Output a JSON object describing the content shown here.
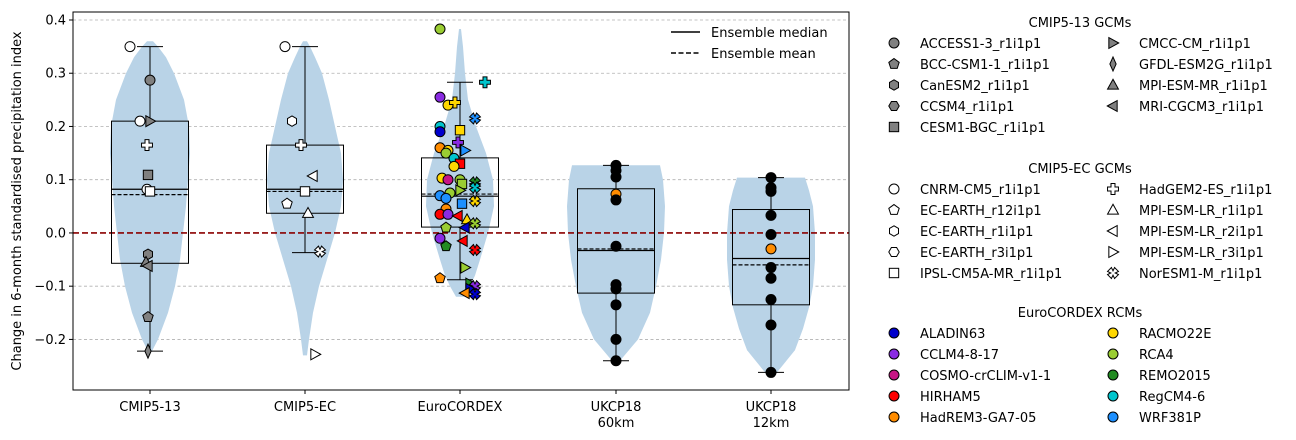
{
  "chart_data": {
    "type": "box",
    "ylabel": "Change in 6-month standardised precipitation index",
    "ylim": [
      -0.295,
      0.415
    ],
    "yticks": [
      -0.2,
      -0.1,
      0.0,
      0.1,
      0.2,
      0.3,
      0.4
    ],
    "ytick_labels": [
      "−0.2",
      "−0.1",
      "0.0",
      "0.1",
      "0.2",
      "0.3",
      "0.4"
    ],
    "grid": "y-dashed",
    "zero_line_color": "#8b0000",
    "violin_color": "#b9d3e7",
    "categories": [
      {
        "label": "CMIP5-13",
        "label2": ""
      },
      {
        "label": "CMIP5-EC",
        "label2": ""
      },
      {
        "label": "EuroCORDEX",
        "label2": ""
      },
      {
        "label": "UKCP18",
        "label2": "60km"
      },
      {
        "label": "UKCP18",
        "label2": "12km"
      }
    ],
    "boxes": [
      {
        "q1": -0.057,
        "q3": 0.21,
        "median": 0.082,
        "mean": 0.072,
        "whislo": -0.222,
        "whishi": 0.35
      },
      {
        "q1": 0.037,
        "q3": 0.165,
        "median": 0.082,
        "mean": 0.078,
        "whislo": -0.037,
        "whishi": 0.35
      },
      {
        "q1": 0.011,
        "q3": 0.141,
        "median": 0.069,
        "mean": 0.073,
        "whislo": -0.088,
        "whishi": 0.283
      },
      {
        "q1": -0.113,
        "q3": 0.083,
        "median": -0.033,
        "mean": -0.03,
        "whislo": -0.24,
        "whishi": 0.127
      },
      {
        "q1": -0.135,
        "q3": 0.044,
        "median": -0.048,
        "mean": -0.06,
        "whislo": -0.262,
        "whishi": 0.104
      }
    ],
    "violins": [
      [
        [
          -0.222,
          2
        ],
        [
          -0.2,
          8
        ],
        [
          -0.15,
          18
        ],
        [
          -0.1,
          25
        ],
        [
          -0.05,
          30
        ],
        [
          0.0,
          33
        ],
        [
          0.05,
          36
        ],
        [
          0.1,
          38
        ],
        [
          0.15,
          40
        ],
        [
          0.2,
          39
        ],
        [
          0.25,
          34
        ],
        [
          0.3,
          24
        ],
        [
          0.33,
          16
        ],
        [
          0.35,
          8
        ],
        [
          0.36,
          3
        ]
      ],
      [
        [
          -0.23,
          2
        ],
        [
          -0.2,
          4
        ],
        [
          -0.15,
          8
        ],
        [
          -0.1,
          14
        ],
        [
          -0.05,
          22
        ],
        [
          0.0,
          30
        ],
        [
          0.05,
          36
        ],
        [
          0.1,
          38
        ],
        [
          0.15,
          36
        ],
        [
          0.2,
          30
        ],
        [
          0.25,
          24
        ],
        [
          0.3,
          17
        ],
        [
          0.33,
          10
        ],
        [
          0.35,
          5
        ],
        [
          0.36,
          2
        ]
      ],
      [
        [
          -0.12,
          4
        ],
        [
          -0.1,
          10
        ],
        [
          -0.08,
          15
        ],
        [
          -0.05,
          20
        ],
        [
          0.0,
          28
        ],
        [
          0.05,
          34
        ],
        [
          0.1,
          33
        ],
        [
          0.15,
          26
        ],
        [
          0.2,
          16
        ],
        [
          0.25,
          8
        ],
        [
          0.3,
          5
        ],
        [
          0.35,
          3
        ],
        [
          0.383,
          1
        ]
      ],
      [
        [
          -0.24,
          4
        ],
        [
          -0.2,
          22
        ],
        [
          -0.15,
          34
        ],
        [
          -0.1,
          40
        ],
        [
          -0.05,
          45
        ],
        [
          0.0,
          48
        ],
        [
          0.05,
          49
        ],
        [
          0.1,
          47
        ],
        [
          0.127,
          44
        ]
      ],
      [
        [
          -0.262,
          6
        ],
        [
          -0.22,
          24
        ],
        [
          -0.18,
          32
        ],
        [
          -0.14,
          38
        ],
        [
          -0.1,
          42
        ],
        [
          -0.05,
          44
        ],
        [
          0.0,
          44
        ],
        [
          0.05,
          42
        ],
        [
          0.08,
          38
        ],
        [
          0.104,
          34
        ]
      ]
    ],
    "points": [
      {
        "cat": 0,
        "dx": -20,
        "y": 0.35,
        "m": "o",
        "c": "#ffffff"
      },
      {
        "cat": 0,
        "dx": 0,
        "y": 0.287,
        "m": "o",
        "c": "#808080"
      },
      {
        "cat": 0,
        "dx": -10,
        "y": 0.21,
        "m": "o",
        "c": "#ffffff"
      },
      {
        "cat": 0,
        "dx": 0,
        "y": 0.21,
        "m": "tri-r",
        "c": "#808080"
      },
      {
        "cat": 0,
        "dx": -3,
        "y": 0.165,
        "m": "plus",
        "c": "#ffffff"
      },
      {
        "cat": 0,
        "dx": -2,
        "y": 0.109,
        "m": "sq",
        "c": "#808080"
      },
      {
        "cat": 0,
        "dx": -3,
        "y": 0.082,
        "m": "o",
        "c": "#ffffff"
      },
      {
        "cat": 0,
        "dx": 0,
        "y": 0.078,
        "m": "sq",
        "c": "#ffffff"
      },
      {
        "cat": 0,
        "dx": -2,
        "y": -0.04,
        "m": "hex",
        "c": "#808080"
      },
      {
        "cat": 0,
        "dx": -4,
        "y": -0.055,
        "m": "tri-u",
        "c": "#808080"
      },
      {
        "cat": 0,
        "dx": -2,
        "y": -0.062,
        "m": "tri-l",
        "c": "#808080"
      },
      {
        "cat": 0,
        "dx": -2,
        "y": -0.158,
        "m": "pent",
        "c": "#808080"
      },
      {
        "cat": 0,
        "dx": -2,
        "y": -0.222,
        "m": "diam",
        "c": "#808080"
      },
      {
        "cat": 1,
        "dx": -20,
        "y": 0.35,
        "m": "o",
        "c": "#ffffff"
      },
      {
        "cat": 1,
        "dx": -13,
        "y": 0.21,
        "m": "hex",
        "c": "#ffffff"
      },
      {
        "cat": 1,
        "dx": -4,
        "y": 0.165,
        "m": "plus",
        "c": "#ffffff"
      },
      {
        "cat": 1,
        "dx": 8,
        "y": 0.107,
        "m": "tri-l",
        "c": "#ffffff"
      },
      {
        "cat": 1,
        "dx": 0,
        "y": 0.078,
        "m": "sq",
        "c": "#ffffff"
      },
      {
        "cat": 1,
        "dx": -18,
        "y": 0.055,
        "m": "pent",
        "c": "#ffffff"
      },
      {
        "cat": 1,
        "dx": 3,
        "y": 0.037,
        "m": "tri-u",
        "c": "#ffffff"
      },
      {
        "cat": 1,
        "dx": 15,
        "y": -0.035,
        "m": "x",
        "c": "#ffffff"
      },
      {
        "cat": 1,
        "dx": 10,
        "y": -0.228,
        "m": "tri-r",
        "c": "#ffffff"
      },
      {
        "cat": 2,
        "dx": -20,
        "y": 0.383,
        "m": "o",
        "c": "#9acd32"
      },
      {
        "cat": 2,
        "dx": 25,
        "y": 0.283,
        "m": "plus",
        "c": "#00c5cd"
      },
      {
        "cat": 2,
        "dx": -20,
        "y": 0.255,
        "m": "o",
        "c": "#8a2be2"
      },
      {
        "cat": 2,
        "dx": -12,
        "y": 0.24,
        "m": "o",
        "c": "#ffd700"
      },
      {
        "cat": 2,
        "dx": -5,
        "y": 0.245,
        "m": "plus",
        "c": "#ffd700"
      },
      {
        "cat": 2,
        "dx": 15,
        "y": 0.215,
        "m": "x",
        "c": "#1e90ff"
      },
      {
        "cat": 2,
        "dx": -20,
        "y": 0.2,
        "m": "o",
        "c": "#00c5cd"
      },
      {
        "cat": 2,
        "dx": -20,
        "y": 0.19,
        "m": "o",
        "c": "#0000cd"
      },
      {
        "cat": 2,
        "dx": 0,
        "y": 0.193,
        "m": "sq",
        "c": "#ffd700"
      },
      {
        "cat": 2,
        "dx": -2,
        "y": 0.17,
        "m": "plus",
        "c": "#8a2be2"
      },
      {
        "cat": 2,
        "dx": -20,
        "y": 0.16,
        "m": "o",
        "c": "#ff8c00"
      },
      {
        "cat": 2,
        "dx": -12,
        "y": 0.155,
        "m": "o",
        "c": "#ffd700"
      },
      {
        "cat": 2,
        "dx": 5,
        "y": 0.155,
        "m": "tri-r",
        "c": "#1e90ff"
      },
      {
        "cat": 2,
        "dx": -14,
        "y": 0.15,
        "m": "o",
        "c": "#9acd32"
      },
      {
        "cat": 2,
        "dx": -6,
        "y": 0.14,
        "m": "o",
        "c": "#00c5cd"
      },
      {
        "cat": 2,
        "dx": 0,
        "y": 0.13,
        "m": "sq",
        "c": "#ff0000"
      },
      {
        "cat": 2,
        "dx": -6,
        "y": 0.125,
        "m": "o",
        "c": "#ffd700"
      },
      {
        "cat": 2,
        "dx": -18,
        "y": 0.103,
        "m": "o",
        "c": "#ffd700"
      },
      {
        "cat": 2,
        "dx": -12,
        "y": 0.1,
        "m": "o",
        "c": "#c71585"
      },
      {
        "cat": 2,
        "dx": 0,
        "y": 0.1,
        "m": "o",
        "c": "#9acd32"
      },
      {
        "cat": 2,
        "dx": 15,
        "y": 0.095,
        "m": "x",
        "c": "#228b22"
      },
      {
        "cat": 2,
        "dx": 2,
        "y": 0.092,
        "m": "sq",
        "c": "#9acd32"
      },
      {
        "cat": 2,
        "dx": 15,
        "y": 0.085,
        "m": "x",
        "c": "#00c5cd"
      },
      {
        "cat": 2,
        "dx": 0,
        "y": 0.08,
        "m": "tri-r",
        "c": "#9acd32"
      },
      {
        "cat": 2,
        "dx": -10,
        "y": 0.075,
        "m": "o",
        "c": "#9acd32"
      },
      {
        "cat": 2,
        "dx": -20,
        "y": 0.07,
        "m": "o",
        "c": "#1e90ff"
      },
      {
        "cat": 2,
        "dx": -14,
        "y": 0.065,
        "m": "o",
        "c": "#1e90ff"
      },
      {
        "cat": 2,
        "dx": 15,
        "y": 0.06,
        "m": "x",
        "c": "#ffd700"
      },
      {
        "cat": 2,
        "dx": 2,
        "y": 0.055,
        "m": "sq",
        "c": "#1e90ff"
      },
      {
        "cat": 2,
        "dx": -14,
        "y": 0.045,
        "m": "o",
        "c": "#ff8c00"
      },
      {
        "cat": 2,
        "dx": -20,
        "y": 0.035,
        "m": "o",
        "c": "#ff0000"
      },
      {
        "cat": 2,
        "dx": -12,
        "y": 0.035,
        "m": "o",
        "c": "#8a2be2"
      },
      {
        "cat": 2,
        "dx": -2,
        "y": 0.032,
        "m": "tri-l",
        "c": "#ff0000"
      },
      {
        "cat": 2,
        "dx": 7,
        "y": 0.025,
        "m": "tri-u",
        "c": "#ffd700"
      },
      {
        "cat": 2,
        "dx": 15,
        "y": 0.018,
        "m": "x",
        "c": "#9acd32"
      },
      {
        "cat": 2,
        "dx": -14,
        "y": 0.01,
        "m": "pent",
        "c": "#9acd32"
      },
      {
        "cat": 2,
        "dx": 5,
        "y": 0.01,
        "m": "tri-l",
        "c": "#0000cd"
      },
      {
        "cat": 2,
        "dx": -20,
        "y": -0.01,
        "m": "o",
        "c": "#8a2be2"
      },
      {
        "cat": 2,
        "dx": -14,
        "y": -0.025,
        "m": "pent",
        "c": "#228b22"
      },
      {
        "cat": 2,
        "dx": 3,
        "y": -0.015,
        "m": "tri-l",
        "c": "#ff0000"
      },
      {
        "cat": 2,
        "dx": 15,
        "y": -0.032,
        "m": "x",
        "c": "#ff0000"
      },
      {
        "cat": 2,
        "dx": 5,
        "y": -0.065,
        "m": "tri-r",
        "c": "#9acd32"
      },
      {
        "cat": 2,
        "dx": -20,
        "y": -0.085,
        "m": "pent",
        "c": "#ff8c00"
      },
      {
        "cat": 2,
        "dx": 10,
        "y": -0.095,
        "m": "tri-r",
        "c": "#228b22"
      },
      {
        "cat": 2,
        "dx": 15,
        "y": -0.1,
        "m": "x",
        "c": "#8a2be2"
      },
      {
        "cat": 2,
        "dx": 10,
        "y": -0.105,
        "m": "tri-r",
        "c": "#0000cd"
      },
      {
        "cat": 2,
        "dx": 5,
        "y": -0.113,
        "m": "tri-l",
        "c": "#ff8c00"
      },
      {
        "cat": 2,
        "dx": 15,
        "y": -0.115,
        "m": "x",
        "c": "#0000cd"
      },
      {
        "cat": 3,
        "dx": 0,
        "y": 0.127,
        "m": "o",
        "c": "#000000"
      },
      {
        "cat": 3,
        "dx": 0,
        "y": 0.117,
        "m": "o",
        "c": "#000000"
      },
      {
        "cat": 3,
        "dx": 0,
        "y": 0.105,
        "m": "o",
        "c": "#000000"
      },
      {
        "cat": 3,
        "dx": 0,
        "y": 0.073,
        "m": "o",
        "c": "#ff8c00"
      },
      {
        "cat": 3,
        "dx": 0,
        "y": 0.062,
        "m": "o",
        "c": "#000000"
      },
      {
        "cat": 3,
        "dx": 0,
        "y": -0.025,
        "m": "o",
        "c": "#000000"
      },
      {
        "cat": 3,
        "dx": 0,
        "y": -0.097,
        "m": "o",
        "c": "#000000"
      },
      {
        "cat": 3,
        "dx": 0,
        "y": -0.105,
        "m": "o",
        "c": "#000000"
      },
      {
        "cat": 3,
        "dx": 0,
        "y": -0.135,
        "m": "o",
        "c": "#000000"
      },
      {
        "cat": 3,
        "dx": 0,
        "y": -0.2,
        "m": "o",
        "c": "#000000"
      },
      {
        "cat": 3,
        "dx": 0,
        "y": -0.24,
        "m": "o",
        "c": "#000000"
      },
      {
        "cat": 4,
        "dx": 0,
        "y": 0.104,
        "m": "o",
        "c": "#000000"
      },
      {
        "cat": 4,
        "dx": 0,
        "y": 0.085,
        "m": "o",
        "c": "#000000"
      },
      {
        "cat": 4,
        "dx": 0,
        "y": 0.078,
        "m": "o",
        "c": "#000000"
      },
      {
        "cat": 4,
        "dx": 0,
        "y": 0.033,
        "m": "o",
        "c": "#000000"
      },
      {
        "cat": 4,
        "dx": 0,
        "y": -0.003,
        "m": "o",
        "c": "#000000"
      },
      {
        "cat": 4,
        "dx": 0,
        "y": -0.03,
        "m": "o",
        "c": "#ff8c00"
      },
      {
        "cat": 4,
        "dx": 0,
        "y": -0.065,
        "m": "o",
        "c": "#000000"
      },
      {
        "cat": 4,
        "dx": 0,
        "y": -0.085,
        "m": "o",
        "c": "#000000"
      },
      {
        "cat": 4,
        "dx": 0,
        "y": -0.125,
        "m": "o",
        "c": "#000000"
      },
      {
        "cat": 4,
        "dx": 0,
        "y": -0.173,
        "m": "o",
        "c": "#000000"
      },
      {
        "cat": 4,
        "dx": 0,
        "y": -0.262,
        "m": "o",
        "c": "#000000"
      }
    ],
    "inner_legend": [
      {
        "label": "Ensemble median",
        "style": "solid"
      },
      {
        "label": "Ensemble mean",
        "style": "dashed"
      }
    ],
    "legend_groups": [
      {
        "title": "CMIP5-13 GCMs",
        "fill": "#808080",
        "col1": [
          {
            "label": "ACCESS1-3_r1i1p1",
            "m": "o"
          },
          {
            "label": "BCC-CSM1-1_r1i1p1",
            "m": "pent"
          },
          {
            "label": "CanESM2_r1i1p1",
            "m": "hex"
          },
          {
            "label": "CCSM4_r1i1p1",
            "m": "hex2"
          },
          {
            "label": "CESM1-BGC_r1i1p1",
            "m": "sq"
          }
        ],
        "col2": [
          {
            "label": "CMCC-CM_r1i1p1",
            "m": "tri-r"
          },
          {
            "label": "GFDL-ESM2G_r1i1p1",
            "m": "diam"
          },
          {
            "label": "MPI-ESM-MR_r1i1p1",
            "m": "tri-u"
          },
          {
            "label": "MRI-CGCM3_r1i1p1",
            "m": "tri-l"
          }
        ]
      },
      {
        "title": "CMIP5-EC GCMs",
        "fill": "#ffffff",
        "col1": [
          {
            "label": "CNRM-CM5_r1i1p1",
            "m": "o"
          },
          {
            "label": "EC-EARTH_r12i1p1",
            "m": "pent"
          },
          {
            "label": "EC-EARTH_r1i1p1",
            "m": "hex"
          },
          {
            "label": "EC-EARTH_r3i1p1",
            "m": "hex2"
          },
          {
            "label": "IPSL-CM5A-MR_r1i1p1",
            "m": "sq"
          }
        ],
        "col2": [
          {
            "label": "HadGEM2-ES_r1i1p1",
            "m": "plus"
          },
          {
            "label": "MPI-ESM-LR_r1i1p1",
            "m": "tri-u"
          },
          {
            "label": "MPI-ESM-LR_r2i1p1",
            "m": "tri-l"
          },
          {
            "label": "MPI-ESM-LR_r3i1p1",
            "m": "tri-r"
          },
          {
            "label": "NorESM1-M_r1i1p1",
            "m": "x"
          }
        ]
      },
      {
        "title": "EuroCORDEX RCMs",
        "fill": "",
        "col1": [
          {
            "label": "ALADIN63",
            "m": "o",
            "c": "#0000cd"
          },
          {
            "label": "CCLM4-8-17",
            "m": "o",
            "c": "#8a2be2"
          },
          {
            "label": "COSMO-crCLIM-v1-1",
            "m": "o",
            "c": "#c71585"
          },
          {
            "label": "HIRHAM5",
            "m": "o",
            "c": "#ff0000"
          },
          {
            "label": "HadREM3-GA7-05",
            "m": "o",
            "c": "#ff8c00"
          }
        ],
        "col2": [
          {
            "label": "RACMO22E",
            "m": "o",
            "c": "#ffd700"
          },
          {
            "label": "RCA4",
            "m": "o",
            "c": "#9acd32"
          },
          {
            "label": "REMO2015",
            "m": "o",
            "c": "#228b22"
          },
          {
            "label": "RegCM4-6",
            "m": "o",
            "c": "#00c5cd"
          },
          {
            "label": "WRF381P",
            "m": "o",
            "c": "#1e90ff"
          }
        ]
      }
    ]
  }
}
